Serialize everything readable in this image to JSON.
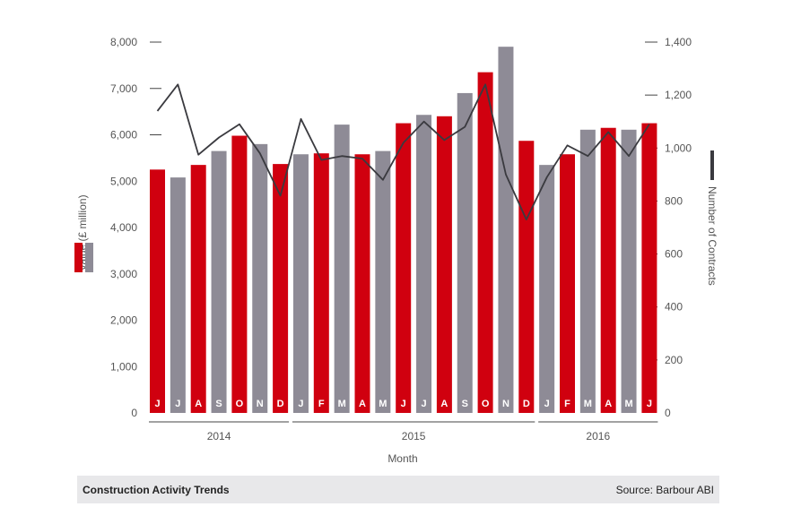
{
  "colors": {
    "red": "#d0000f",
    "grey": "#8e8b96",
    "line": "#3a3a3f",
    "text": "#555555"
  },
  "chart_data": {
    "type": "bar",
    "title": "",
    "xlabel": "Month",
    "ylabel": "Value (£ million)",
    "y2label": "Number of Contracts",
    "ylim": [
      0,
      8000
    ],
    "y2lim": [
      0,
      1400
    ],
    "yticks": [
      "0",
      "1,000",
      "2,000",
      "3,000",
      "4,000",
      "5,000",
      "6,000",
      "7,000",
      "8,000"
    ],
    "y2ticks": [
      "0",
      "200",
      "400",
      "600",
      "800",
      "1,000",
      "1,200",
      "1,400"
    ],
    "categories": [
      "J",
      "J",
      "A",
      "S",
      "O",
      "N",
      "D",
      "J",
      "F",
      "M",
      "A",
      "M",
      "J",
      "J",
      "A",
      "S",
      "O",
      "N",
      "D",
      "J",
      "F",
      "M",
      "A",
      "M",
      "J"
    ],
    "bar_colors": [
      "red",
      "grey",
      "red",
      "grey",
      "red",
      "grey",
      "red",
      "grey",
      "red",
      "grey",
      "red",
      "grey",
      "red",
      "grey",
      "red",
      "grey",
      "red",
      "grey",
      "red",
      "grey",
      "red",
      "grey",
      "red",
      "grey",
      "red"
    ],
    "years": [
      {
        "label": "2014",
        "start": 0,
        "end": 6
      },
      {
        "label": "2015",
        "start": 7,
        "end": 18
      },
      {
        "label": "2016",
        "start": 19,
        "end": 24
      }
    ],
    "series": [
      {
        "values": [
          5250,
          5080,
          5350,
          5650,
          5980,
          5800,
          5370,
          5580,
          5600,
          6220,
          5580,
          5650,
          6250,
          6430,
          6400,
          6900,
          7350,
          7900,
          5870,
          5350,
          5580,
          6110,
          6150,
          6110,
          6250
        ]
      },
      {
        "axis": "right",
        "type": "line",
        "values": [
          1140,
          1240,
          975,
          1040,
          1090,
          980,
          820,
          1110,
          955,
          970,
          960,
          880,
          1020,
          1100,
          1030,
          1080,
          1240,
          900,
          730,
          890,
          1010,
          970,
          1060,
          970,
          1090
        ]
      }
    ]
  },
  "footer": {
    "title": "Construction Activity Trends",
    "source": "Source: Barbour ABI"
  }
}
